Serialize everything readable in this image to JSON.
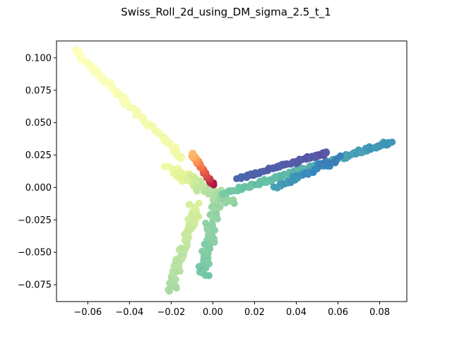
{
  "chart_data": {
    "type": "scatter",
    "title": "Swiss_Roll_2d_using_DM_sigma_2.5_t_1",
    "xlabel": "",
    "ylabel": "",
    "xlim": [
      -0.075,
      0.093
    ],
    "ylim": [
      -0.088,
      0.113
    ],
    "x_ticks": [
      -0.06,
      -0.04,
      -0.02,
      0.0,
      0.02,
      0.04,
      0.06,
      0.08
    ],
    "x_tick_labels": [
      "−0.06",
      "−0.04",
      "−0.02",
      "0.00",
      "0.02",
      "0.04",
      "0.06",
      "0.08"
    ],
    "y_ticks": [
      -0.075,
      -0.05,
      -0.025,
      0.0,
      0.025,
      0.05,
      0.075,
      0.1
    ],
    "y_tick_labels": [
      "−0.075",
      "−0.050",
      "−0.025",
      "0.000",
      "0.025",
      "0.050",
      "0.075",
      "0.100"
    ],
    "grid": false,
    "legend": "none",
    "colormap": "Spectral",
    "colormap_stops": [
      "#9e0142",
      "#d53e4f",
      "#f46d43",
      "#fdae61",
      "#fee08b",
      "#ffffbf",
      "#e6f598",
      "#abdda4",
      "#66c2a5",
      "#3288bd",
      "#5e4fa2"
    ],
    "segments": [
      {
        "name": "tip-red-orange",
        "start": [
          0.0,
          0.002
        ],
        "end": [
          -0.01,
          0.026
        ],
        "count": 45,
        "spread": 0.0015,
        "c0": 0.02,
        "c1": 0.32
      },
      {
        "name": "upper-left-arm",
        "start": [
          -0.066,
          0.105
        ],
        "end": [
          -0.014,
          0.022
        ],
        "count": 110,
        "spread": 0.0022,
        "c0": 0.5,
        "c1": 0.56
      },
      {
        "name": "center-cluster",
        "start": [
          -0.02,
          0.015
        ],
        "end": [
          0.008,
          -0.012
        ],
        "count": 120,
        "spread": 0.006,
        "c0": 0.56,
        "c1": 0.74
      },
      {
        "name": "lower-left-leg",
        "start": [
          -0.008,
          -0.012
        ],
        "end": [
          -0.02,
          -0.079
        ],
        "count": 80,
        "spread": 0.0035,
        "c0": 0.62,
        "c1": 0.7
      },
      {
        "name": "lower-mid-leg",
        "start": [
          0.002,
          -0.01
        ],
        "end": [
          -0.005,
          -0.068
        ],
        "count": 70,
        "spread": 0.004,
        "c0": 0.72,
        "c1": 0.78
      },
      {
        "name": "lower-right-band",
        "start": [
          0.005,
          -0.005
        ],
        "end": [
          0.086,
          0.035
        ],
        "count": 150,
        "spread": 0.0022,
        "c0": 0.78,
        "c1": 0.88
      },
      {
        "name": "upper-right-band",
        "start": [
          0.012,
          0.007
        ],
        "end": [
          0.055,
          0.027
        ],
        "count": 80,
        "spread": 0.0015,
        "c0": 0.96,
        "c1": 0.99
      },
      {
        "name": "cross-mid",
        "start": [
          0.03,
          0.0
        ],
        "end": [
          0.06,
          0.022
        ],
        "count": 40,
        "spread": 0.003,
        "c0": 0.86,
        "c1": 0.92
      }
    ]
  }
}
